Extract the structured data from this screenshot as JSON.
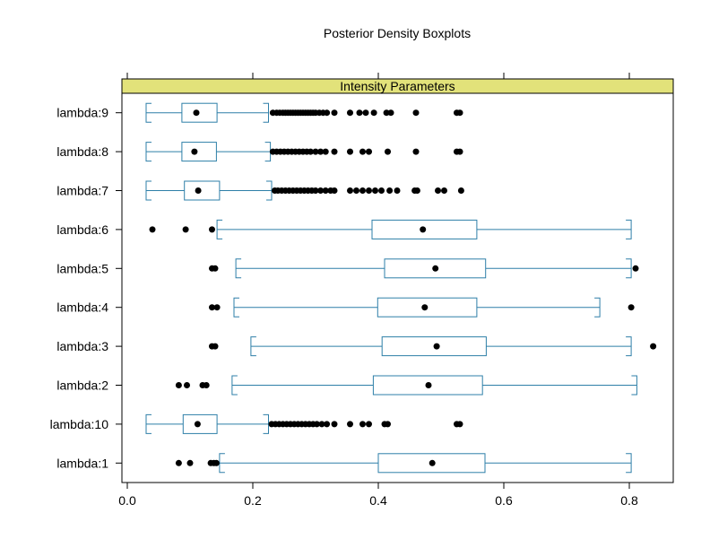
{
  "chart_data": {
    "type": "boxplot",
    "title": "Posterior Density Boxplots",
    "strip_label": "Intensity Parameters",
    "xlabel": "",
    "ylabel": "",
    "xlim": [
      -0.01,
      0.87
    ],
    "x_ticks": [
      0.0,
      0.2,
      0.4,
      0.6,
      0.8
    ],
    "x_tick_labels": [
      "0.0",
      "0.2",
      "0.4",
      "0.6",
      "0.8"
    ],
    "colors": {
      "box": "#2e7fa8",
      "strip": "#e2e27a",
      "points": "#000000"
    },
    "rows": [
      {
        "label": "lambda:9",
        "whisker_low": 0.03,
        "q1": 0.087,
        "median": 0.11,
        "q3": 0.143,
        "whisker_high": 0.225,
        "outliers": [
          0.232,
          0.238,
          0.243,
          0.248,
          0.252,
          0.256,
          0.26,
          0.264,
          0.268,
          0.272,
          0.276,
          0.28,
          0.284,
          0.288,
          0.292,
          0.296,
          0.3,
          0.306,
          0.312,
          0.318,
          0.33,
          0.355,
          0.37,
          0.38,
          0.393,
          0.413,
          0.42,
          0.46,
          0.525,
          0.53
        ]
      },
      {
        "label": "lambda:8",
        "whisker_low": 0.03,
        "q1": 0.087,
        "median": 0.107,
        "q3": 0.142,
        "whisker_high": 0.228,
        "outliers": [
          0.232,
          0.238,
          0.244,
          0.25,
          0.256,
          0.262,
          0.268,
          0.274,
          0.28,
          0.286,
          0.292,
          0.3,
          0.308,
          0.316,
          0.33,
          0.355,
          0.375,
          0.385,
          0.415,
          0.46,
          0.525,
          0.53
        ]
      },
      {
        "label": "lambda:7",
        "whisker_low": 0.03,
        "q1": 0.091,
        "median": 0.113,
        "q3": 0.147,
        "whisker_high": 0.23,
        "outliers": [
          0.235,
          0.24,
          0.246,
          0.252,
          0.258,
          0.264,
          0.27,
          0.276,
          0.282,
          0.288,
          0.294,
          0.3,
          0.308,
          0.316,
          0.324,
          0.33,
          0.355,
          0.365,
          0.375,
          0.385,
          0.395,
          0.405,
          0.418,
          0.43,
          0.458,
          0.462,
          0.495,
          0.505,
          0.532
        ]
      },
      {
        "label": "lambda:6",
        "whisker_low": 0.143,
        "q1": 0.39,
        "median": 0.471,
        "q3": 0.557,
        "whisker_high": 0.803,
        "outliers": [
          0.04,
          0.093,
          0.135
        ]
      },
      {
        "label": "lambda:5",
        "whisker_low": 0.173,
        "q1": 0.41,
        "median": 0.491,
        "q3": 0.571,
        "whisker_high": 0.803,
        "outliers": [
          0.135,
          0.14,
          0.81
        ]
      },
      {
        "label": "lambda:4",
        "whisker_low": 0.17,
        "q1": 0.399,
        "median": 0.474,
        "q3": 0.557,
        "whisker_high": 0.753,
        "outliers": [
          0.135,
          0.143,
          0.803
        ]
      },
      {
        "label": "lambda:3",
        "whisker_low": 0.197,
        "q1": 0.406,
        "median": 0.493,
        "q3": 0.572,
        "whisker_high": 0.803,
        "outliers": [
          0.135,
          0.14,
          0.838
        ]
      },
      {
        "label": "lambda:2",
        "whisker_low": 0.167,
        "q1": 0.392,
        "median": 0.48,
        "q3": 0.566,
        "whisker_high": 0.812,
        "outliers": [
          0.082,
          0.095,
          0.12,
          0.126
        ]
      },
      {
        "label": "lambda:10",
        "whisker_low": 0.03,
        "q1": 0.089,
        "median": 0.112,
        "q3": 0.143,
        "whisker_high": 0.225,
        "outliers": [
          0.23,
          0.236,
          0.242,
          0.248,
          0.254,
          0.26,
          0.266,
          0.272,
          0.278,
          0.284,
          0.29,
          0.296,
          0.302,
          0.31,
          0.318,
          0.33,
          0.355,
          0.375,
          0.385,
          0.41,
          0.415,
          0.525,
          0.53
        ]
      },
      {
        "label": "lambda:1",
        "whisker_low": 0.147,
        "q1": 0.4,
        "median": 0.486,
        "q3": 0.57,
        "whisker_high": 0.803,
        "outliers": [
          0.082,
          0.1,
          0.133,
          0.138,
          0.142
        ]
      }
    ]
  }
}
